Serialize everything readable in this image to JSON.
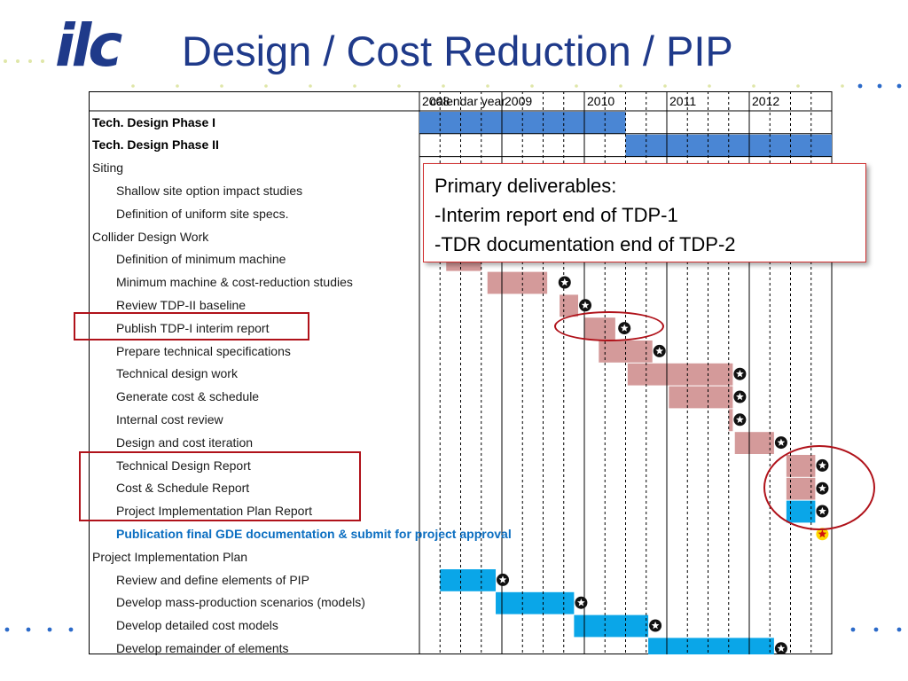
{
  "title": "Design / Cost Reduction / PIP",
  "logo_text": "ilc",
  "colors": {
    "title": "#1f3a8a",
    "phase_bar": "#4a86d4",
    "task_bar": "#d49a9a",
    "pip_bar": "#0aa6e8",
    "highlight": "#b0121a",
    "milestone_fill": "#111111",
    "final_milestone": "#ffd700"
  },
  "chart_data": {
    "type": "gantt",
    "time_axis_label": "calendar year",
    "years": [
      "2008",
      "2009",
      "2010",
      "2011",
      "2012"
    ],
    "unit": "quarter",
    "quarters_total": 20,
    "rows": [
      {
        "label": "Tech. Design Phase I",
        "style": "bold",
        "bar": [
          0,
          10
        ],
        "color": "phase_bar"
      },
      {
        "label": "Tech. Design Phase II",
        "style": "bold",
        "bar": [
          10,
          20
        ],
        "color": "phase_bar"
      },
      {
        "label": "Siting",
        "style": "section"
      },
      {
        "label": "Shallow site option impact studies",
        "style": "task"
      },
      {
        "label": "Definition of uniform site specs.",
        "style": "task"
      },
      {
        "label": "Collider Design Work",
        "style": "section"
      },
      {
        "label": "Definition of minimum machine",
        "style": "task",
        "bar": [
          1.3,
          3
        ],
        "color": "task_bar"
      },
      {
        "label": "Minimum machine & cost-reduction studies",
        "style": "task",
        "bar": [
          3.3,
          6.2
        ],
        "color": "task_bar",
        "milestone": 6.7
      },
      {
        "label": "Review TDP-II baseline",
        "style": "task",
        "bar": [
          6.8,
          7.7
        ],
        "color": "task_bar",
        "milestone": 7.7
      },
      {
        "label": "Publish TDP-I interim report",
        "style": "task",
        "bar": [
          8,
          9.5
        ],
        "color": "task_bar",
        "milestone": 9.6
      },
      {
        "label": "Prepare technical specifications",
        "style": "task",
        "bar": [
          8.7,
          11.3
        ],
        "color": "task_bar",
        "milestone": 11.3
      },
      {
        "label": "Technical design work",
        "style": "task",
        "bar": [
          10.1,
          15.2
        ],
        "color": "task_bar",
        "milestone": 15.2
      },
      {
        "label": "Generate cost & schedule",
        "style": "task",
        "bar": [
          12.1,
          15.2
        ],
        "color": "task_bar",
        "milestone": 15.2
      },
      {
        "label": "Internal cost review",
        "style": "task",
        "bar": [
          15,
          15.2
        ],
        "color": "task_bar",
        "milestone": 15.2
      },
      {
        "label": "Design and cost iteration",
        "style": "task",
        "bar": [
          15.3,
          17.2
        ],
        "color": "task_bar",
        "milestone": 17.2
      },
      {
        "label": "Technical Design Report",
        "style": "task",
        "bar": [
          17.8,
          19.2
        ],
        "color": "task_bar",
        "milestone": 19.2
      },
      {
        "label": "Cost & Schedule Report",
        "style": "task",
        "bar": [
          17.8,
          19.2
        ],
        "color": "task_bar",
        "milestone": 19.2
      },
      {
        "label": "Project Implementation Plan Report",
        "style": "task",
        "bar": [
          17.8,
          19.2
        ],
        "color": "pip_bar",
        "milestone": 19.2
      },
      {
        "label": "Publication final GDE documentation & submit for project approval",
        "style": "blue-task",
        "milestone": 19.2,
        "milestone_style": "final"
      },
      {
        "label": "Project Implementation Plan",
        "style": "section"
      },
      {
        "label": "Review and define elements of PIP",
        "style": "task",
        "bar": [
          1,
          3.7
        ],
        "color": "pip_bar",
        "milestone": 3.7
      },
      {
        "label": "Develop mass-production scenarios (models)",
        "style": "task",
        "bar": [
          3.7,
          7.5
        ],
        "color": "pip_bar",
        "milestone": 7.5
      },
      {
        "label": "Develop detailed cost models",
        "style": "task",
        "bar": [
          7.5,
          11.1
        ],
        "color": "pip_bar",
        "milestone": 11.1
      },
      {
        "label": "Develop remainder of elements",
        "style": "task",
        "bar": [
          11.1,
          17.2
        ],
        "color": "pip_bar",
        "milestone": 17.2
      }
    ]
  },
  "callout": {
    "line1": "Primary deliverables:",
    "line2": "-Interim report end of TDP-1",
    "line3": "-TDR documentation end of TDP-2"
  }
}
